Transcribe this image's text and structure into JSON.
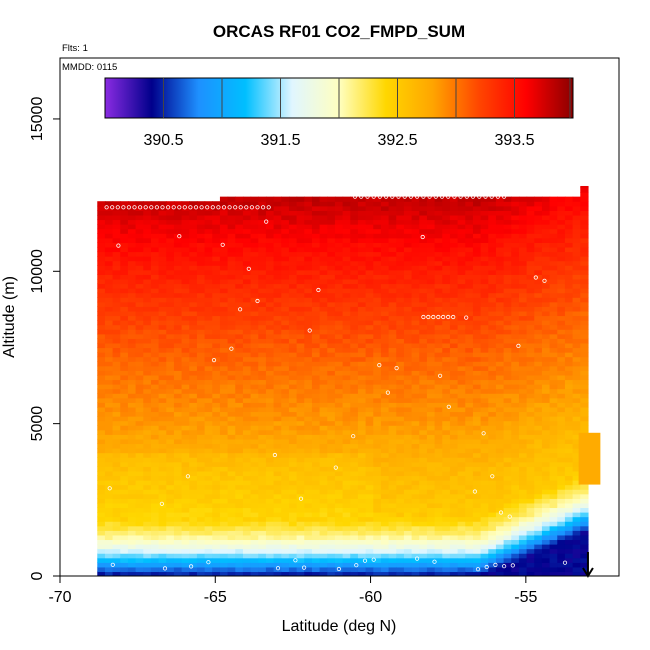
{
  "chart_data": {
    "type": "heatmap",
    "title": "ORCAS RF01 CO2_FMPD_SUM",
    "annotations": {
      "flights": "Flts: 1",
      "date": "MMDD: 0115"
    },
    "xlabel": "Latitude (deg N)",
    "ylabel": "Altitude (m)",
    "xlim": [
      -70,
      -52
    ],
    "ylim": [
      0,
      17000
    ],
    "x_ticks": [
      -70,
      -65,
      -60,
      -55
    ],
    "x_tick_labels": [
      "-70",
      "-65",
      "-60",
      "-55"
    ],
    "y_ticks": [
      0,
      5000,
      10000,
      15000
    ],
    "y_tick_labels": [
      "0",
      "5000",
      "10000",
      "15000"
    ],
    "colorbar": {
      "range": [
        390.0,
        394.0
      ],
      "ticks": [
        390.5,
        391.5,
        392.5,
        393.5
      ],
      "tick_labels": [
        "390.5",
        "391.5",
        "392.5",
        "393.5"
      ],
      "colors": [
        "#8a2be2",
        "#00008b",
        "#1e90ff",
        "#00bfff",
        "#e0f6ff",
        "#ffffc0",
        "#ffd700",
        "#ffa500",
        "#ff4500",
        "#ff0000",
        "#8b0000"
      ]
    },
    "data_extent": {
      "lat_min": -68.8,
      "lat_max": -53,
      "alt_max": 12300
    },
    "field_profile": {
      "altitudes": [
        0,
        300,
        600,
        900,
        1300,
        2000,
        3500,
        5000,
        7000,
        9000,
        10500,
        12300
      ],
      "values": [
        390.4,
        390.8,
        391.3,
        391.7,
        392.1,
        392.5,
        392.65,
        392.85,
        393.05,
        393.3,
        393.5,
        393.8
      ]
    },
    "arrow": {
      "lat": -53,
      "direction": "down"
    },
    "observation_point_style": "white open circles"
  }
}
